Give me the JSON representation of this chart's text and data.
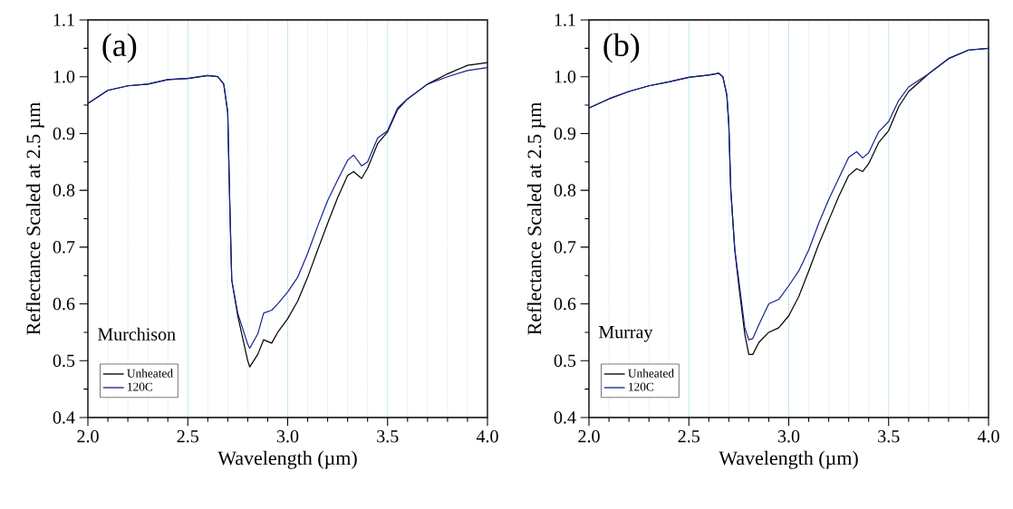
{
  "chart_data": [
    {
      "type": "line",
      "xlabel": "Wavelength (µm)",
      "ylabel": "Reflectance Scaled at 2.5 µm",
      "annotations": [
        "(a)",
        "Murchison"
      ],
      "xlim": [
        2,
        4
      ],
      "ylim": [
        0.4,
        1.1
      ],
      "xticks": [
        {
          "value": 2,
          "label": "2.0"
        },
        {
          "value": 2.1,
          "label": null
        },
        {
          "value": 2.2,
          "label": null
        },
        {
          "value": 2.3,
          "label": null
        },
        {
          "value": 2.4,
          "label": null
        },
        {
          "value": 2.5,
          "label": "2.5"
        },
        {
          "value": 2.6,
          "label": null
        },
        {
          "value": 2.7,
          "label": null
        },
        {
          "value": 2.8,
          "label": null
        },
        {
          "value": 2.9,
          "label": null
        },
        {
          "value": 3,
          "label": "3.0"
        },
        {
          "value": 3.1,
          "label": null
        },
        {
          "value": 3.2,
          "label": null
        },
        {
          "value": 3.3,
          "label": null
        },
        {
          "value": 3.4,
          "label": null
        },
        {
          "value": 3.5,
          "label": "3.5"
        },
        {
          "value": 3.6,
          "label": null
        },
        {
          "value": 3.7,
          "label": null
        },
        {
          "value": 3.8,
          "label": null
        },
        {
          "value": 3.9,
          "label": null
        },
        {
          "value": 4,
          "label": "4.0"
        }
      ],
      "yticks": [
        0.4,
        {
          "value": 0.45,
          "label": null
        },
        0.5,
        {
          "value": 0.55,
          "label": null
        },
        0.6,
        {
          "value": 0.65,
          "label": null
        },
        0.7,
        {
          "value": 0.75,
          "label": null
        },
        0.8,
        {
          "value": 0.85,
          "label": null
        },
        0.9,
        {
          "value": 0.95,
          "label": null
        },
        {
          "value": 1,
          "label": "1.0"
        },
        {
          "value": 1.05,
          "label": null
        },
        1.1
      ],
      "grid": "x",
      "legend": "bottom left",
      "series": [
        {
          "name": "Unheated",
          "color": "#000000",
          "x": [
            2.0,
            2.1,
            2.2,
            2.3,
            2.4,
            2.5,
            2.6,
            2.65,
            2.68,
            2.7,
            2.71,
            2.72,
            2.75,
            2.8,
            2.81,
            2.85,
            2.88,
            2.92,
            2.95,
            3.0,
            3.05,
            3.1,
            3.15,
            3.2,
            3.25,
            3.3,
            3.33,
            3.37,
            3.4,
            3.45,
            3.5,
            3.55,
            3.6,
            3.7,
            3.8,
            3.9,
            4.0
          ],
          "values": [
            0.953,
            0.976,
            0.984,
            0.987,
            0.995,
            0.997,
            1.002,
            1.0,
            0.987,
            0.937,
            0.779,
            0.642,
            0.579,
            0.5,
            0.489,
            0.511,
            0.537,
            0.531,
            0.55,
            0.574,
            0.605,
            0.647,
            0.695,
            0.742,
            0.787,
            0.826,
            0.833,
            0.821,
            0.839,
            0.882,
            0.903,
            0.942,
            0.961,
            0.987,
            1.005,
            1.02,
            1.025
          ]
        },
        {
          "name": "120C",
          "color": "#16238f",
          "x": [
            2.0,
            2.1,
            2.2,
            2.3,
            2.4,
            2.5,
            2.6,
            2.65,
            2.68,
            2.7,
            2.71,
            2.72,
            2.75,
            2.8,
            2.81,
            2.85,
            2.88,
            2.92,
            2.95,
            3.0,
            3.05,
            3.1,
            3.15,
            3.2,
            3.25,
            3.3,
            3.33,
            3.37,
            3.4,
            3.45,
            3.5,
            3.55,
            3.6,
            3.7,
            3.8,
            3.9,
            4.0
          ],
          "values": [
            0.953,
            0.976,
            0.984,
            0.987,
            0.995,
            0.997,
            1.002,
            1.0,
            0.987,
            0.937,
            0.779,
            0.642,
            0.584,
            0.529,
            0.522,
            0.547,
            0.584,
            0.589,
            0.6,
            0.621,
            0.647,
            0.689,
            0.737,
            0.782,
            0.818,
            0.853,
            0.862,
            0.843,
            0.85,
            0.892,
            0.905,
            0.945,
            0.961,
            0.987,
            1.0,
            1.011,
            1.016
          ]
        }
      ]
    },
    {
      "type": "line",
      "xlabel": "Wavelength (µm)",
      "ylabel": "Reflectance Scaled at 2.5 µm",
      "annotations": [
        "(b)",
        "Murray"
      ],
      "xlim": [
        2,
        4
      ],
      "ylim": [
        0.4,
        1.1
      ],
      "xticks": [
        {
          "value": 2,
          "label": "2.0"
        },
        {
          "value": 2.1,
          "label": null
        },
        {
          "value": 2.2,
          "label": null
        },
        {
          "value": 2.3,
          "label": null
        },
        {
          "value": 2.4,
          "label": null
        },
        {
          "value": 2.5,
          "label": "2.5"
        },
        {
          "value": 2.6,
          "label": null
        },
        {
          "value": 2.7,
          "label": null
        },
        {
          "value": 2.8,
          "label": null
        },
        {
          "value": 2.9,
          "label": null
        },
        {
          "value": 3,
          "label": "3.0"
        },
        {
          "value": 3.1,
          "label": null
        },
        {
          "value": 3.2,
          "label": null
        },
        {
          "value": 3.3,
          "label": null
        },
        {
          "value": 3.4,
          "label": null
        },
        {
          "value": 3.5,
          "label": "3.5"
        },
        {
          "value": 3.6,
          "label": null
        },
        {
          "value": 3.7,
          "label": null
        },
        {
          "value": 3.8,
          "label": null
        },
        {
          "value": 3.9,
          "label": null
        },
        {
          "value": 4,
          "label": "4.0"
        }
      ],
      "yticks": [
        0.4,
        {
          "value": 0.45,
          "label": null
        },
        0.5,
        {
          "value": 0.55,
          "label": null
        },
        0.6,
        {
          "value": 0.65,
          "label": null
        },
        0.7,
        {
          "value": 0.75,
          "label": null
        },
        0.8,
        {
          "value": 0.85,
          "label": null
        },
        0.9,
        {
          "value": 0.95,
          "label": null
        },
        {
          "value": 1,
          "label": "1.0"
        },
        {
          "value": 1.05,
          "label": null
        },
        1.1
      ],
      "grid": "x",
      "legend": "bottom left",
      "series": [
        {
          "name": "Unheated",
          "color": "#000000",
          "x": [
            2.0,
            2.1,
            2.2,
            2.3,
            2.4,
            2.5,
            2.6,
            2.65,
            2.67,
            2.69,
            2.7,
            2.71,
            2.73,
            2.75,
            2.78,
            2.8,
            2.82,
            2.85,
            2.9,
            2.95,
            3.0,
            3.05,
            3.1,
            3.15,
            3.2,
            3.25,
            3.3,
            3.34,
            3.37,
            3.4,
            3.45,
            3.5,
            3.55,
            3.6,
            3.7,
            3.8,
            3.9,
            4.0
          ],
          "values": [
            0.945,
            0.961,
            0.974,
            0.984,
            0.991,
            0.999,
            1.003,
            1.006,
            1.0,
            0.968,
            0.916,
            0.8,
            0.695,
            0.632,
            0.547,
            0.511,
            0.511,
            0.532,
            0.55,
            0.558,
            0.579,
            0.613,
            0.658,
            0.705,
            0.747,
            0.789,
            0.826,
            0.838,
            0.833,
            0.847,
            0.884,
            0.905,
            0.947,
            0.974,
            1.005,
            1.032,
            1.047,
            1.05
          ]
        },
        {
          "name": "120C",
          "color": "#16238f",
          "x": [
            2.0,
            2.1,
            2.2,
            2.3,
            2.4,
            2.5,
            2.6,
            2.65,
            2.67,
            2.69,
            2.7,
            2.71,
            2.73,
            2.75,
            2.78,
            2.8,
            2.82,
            2.85,
            2.9,
            2.95,
            3.0,
            3.05,
            3.1,
            3.15,
            3.2,
            3.25,
            3.3,
            3.34,
            3.37,
            3.4,
            3.45,
            3.5,
            3.55,
            3.6,
            3.7,
            3.8,
            3.9,
            4.0
          ],
          "values": [
            0.945,
            0.961,
            0.974,
            0.984,
            0.991,
            0.999,
            1.003,
            1.006,
            1.0,
            0.968,
            0.916,
            0.8,
            0.695,
            0.642,
            0.558,
            0.537,
            0.539,
            0.563,
            0.6,
            0.608,
            0.632,
            0.658,
            0.695,
            0.742,
            0.784,
            0.821,
            0.858,
            0.868,
            0.857,
            0.866,
            0.903,
            0.921,
            0.958,
            0.982,
            1.005,
            1.032,
            1.047,
            1.05
          ]
        }
      ]
    }
  ]
}
